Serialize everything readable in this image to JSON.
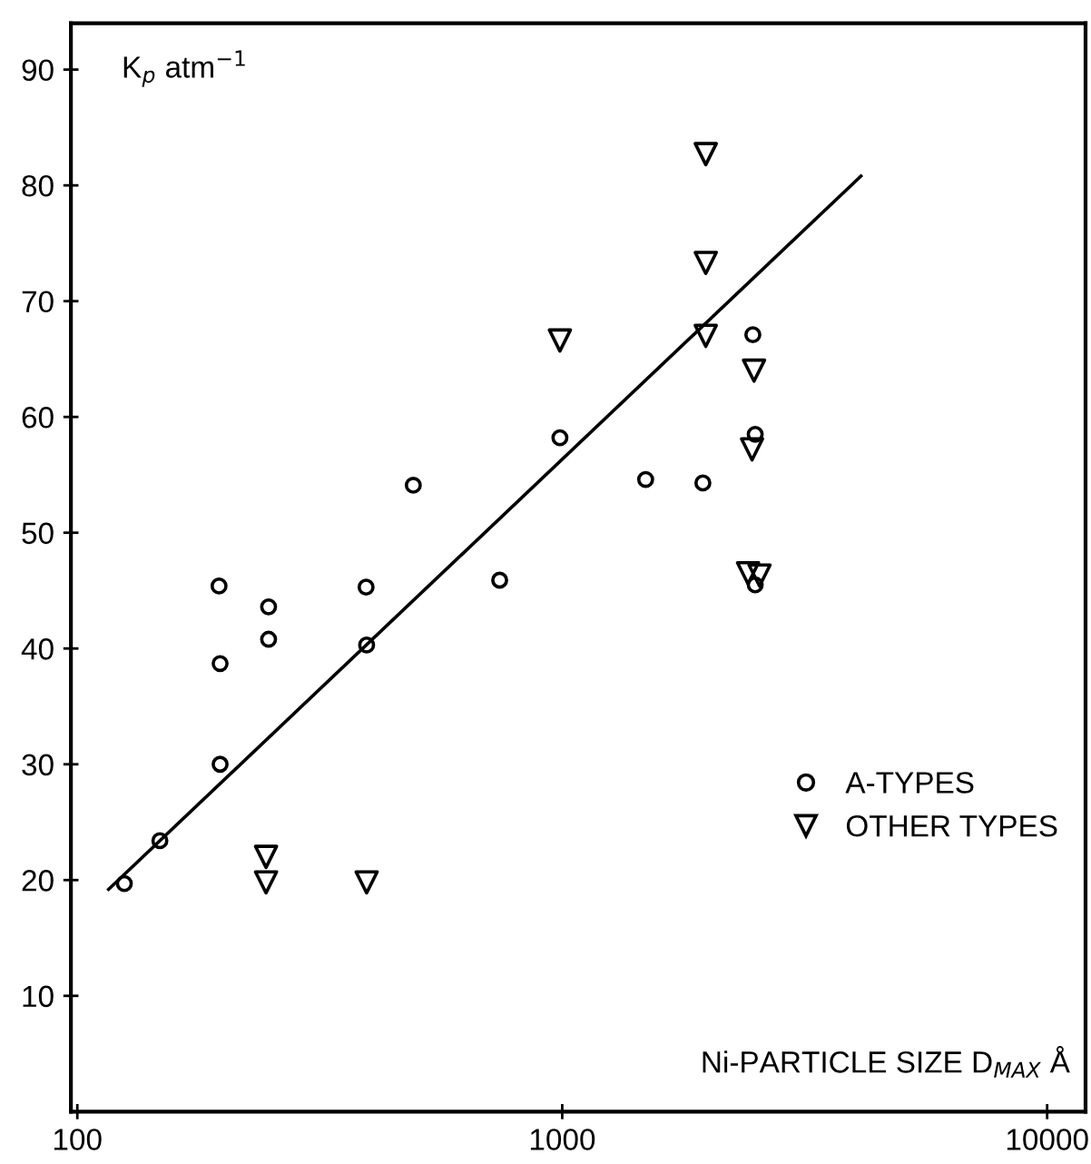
{
  "chart_data": {
    "type": "scatter",
    "xlabel": "Ni-PARTICLE SIZE D$_{MAX}$ Å",
    "ylabel": "K$_{p}$ atm$^{−1}$",
    "log": "x",
    "xlim": [
      97,
      12000
    ],
    "ylim": [
      0,
      94
    ],
    "xticks": [
      100,
      1000,
      10000
    ],
    "yticks": [
      10,
      20,
      30,
      40,
      50,
      60,
      70,
      80,
      90
    ],
    "grid": false,
    "legend": "right",
    "series": [
      {
        "name": "A-TYPES",
        "color": "#000000",
        "marker": "circle",
        "x": [
          125,
          148,
          196,
          197,
          197,
          248,
          248,
          394,
          395,
          743,
          493,
          989,
          1486,
          1950,
          2472,
          2500,
          2500
        ],
        "values": [
          19.7,
          23.4,
          45.4,
          38.7,
          30.0,
          43.6,
          40.8,
          45.3,
          40.3,
          45.9,
          54.1,
          58.2,
          54.6,
          54.3,
          67.1,
          58.5,
          45.5
        ]
      },
      {
        "name": "OTHER TYPES",
        "color": "#000000",
        "marker": "triangle",
        "x": [
          245,
          245,
          395,
          989,
          1977,
          1977,
          1977,
          2486,
          2463,
          2416,
          2552
        ],
        "values": [
          22.0,
          19.8,
          19.8,
          66.6,
          82.7,
          73.3,
          67.0,
          64.0,
          57.2,
          46.5,
          46.3
        ]
      },
      {
        "type": "line",
        "color": "#000000",
        "marker": "none",
        "line_style": "solid",
        "x": [
          116,
          4130
        ],
        "values": [
          19.2,
          80.8
        ]
      }
    ]
  }
}
